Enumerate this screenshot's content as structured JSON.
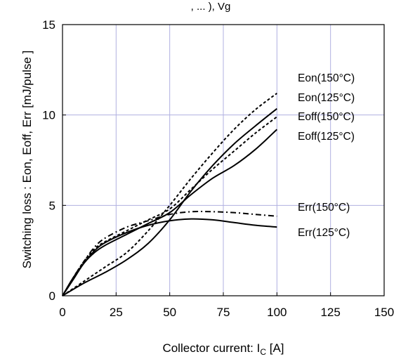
{
  "chart_data": {
    "type": "line",
    "top_text_fragment": ", ... ), Vg",
    "xlabel_main": "Collector current: I",
    "xlabel_sub": "C",
    "xlabel_unit": " [A]",
    "ylabel": "Switching loss  : Eon, Eoff, Err  [mJ/pulse ]",
    "xlim": [
      0,
      150
    ],
    "ylim": [
      0,
      15
    ],
    "xticks": [
      "0",
      "25",
      "50",
      "75",
      "100",
      "125",
      "150"
    ],
    "yticks": [
      "0",
      "5",
      "10",
      "15"
    ],
    "grid": true,
    "grid_color": "#b0b0e0",
    "series": [
      {
        "name": "Eon(150°C)",
        "style": "dashed",
        "x": [
          0,
          10,
          20,
          30,
          40,
          50,
          60,
          70,
          80,
          90,
          100
        ],
        "y": [
          0,
          0.8,
          1.6,
          2.4,
          3.6,
          5.0,
          6.5,
          7.9,
          9.2,
          10.3,
          11.2
        ]
      },
      {
        "name": "Eon(125°C)",
        "style": "solid",
        "x": [
          0,
          10,
          20,
          30,
          40,
          50,
          60,
          70,
          80,
          90,
          100
        ],
        "y": [
          0,
          0.7,
          1.3,
          2.0,
          2.9,
          4.2,
          5.8,
          7.2,
          8.4,
          9.4,
          10.35
        ]
      },
      {
        "name": "Eoff(150°C)",
        "style": "dashed",
        "x": [
          0,
          5,
          10,
          15,
          20,
          30,
          40,
          50,
          60,
          70,
          80,
          90,
          100
        ],
        "y": [
          0,
          1.0,
          1.9,
          2.6,
          3.0,
          3.6,
          4.2,
          4.8,
          5.9,
          7.0,
          8.0,
          9.0,
          9.9
        ]
      },
      {
        "name": "Eoff(125°C)",
        "style": "solid",
        "x": [
          0,
          5,
          10,
          15,
          20,
          30,
          40,
          50,
          60,
          70,
          80,
          90,
          100
        ],
        "y": [
          0,
          0.9,
          1.8,
          2.4,
          2.8,
          3.4,
          4.0,
          4.6,
          5.6,
          6.5,
          7.2,
          8.1,
          9.2
        ]
      },
      {
        "name": "Err(150°C)",
        "style": "dashdot",
        "x": [
          0,
          5,
          10,
          15,
          20,
          30,
          40,
          50,
          60,
          70,
          80,
          90,
          100
        ],
        "y": [
          0,
          1.0,
          1.9,
          2.7,
          3.2,
          3.8,
          4.15,
          4.5,
          4.65,
          4.65,
          4.6,
          4.5,
          4.4
        ]
      },
      {
        "name": "Err(125°C)",
        "style": "solid",
        "x": [
          0,
          5,
          10,
          15,
          20,
          30,
          40,
          50,
          60,
          70,
          80,
          90,
          100
        ],
        "y": [
          0,
          1.0,
          1.8,
          2.5,
          2.95,
          3.5,
          3.9,
          4.15,
          4.25,
          4.2,
          4.05,
          3.9,
          3.8
        ]
      }
    ],
    "annotations": [
      "Eon(150°C)",
      "Eon(125°C)",
      "Eoff(150°C)",
      "Eoff(125°C)",
      "Err(150°C)",
      "Err(125°C)"
    ]
  }
}
